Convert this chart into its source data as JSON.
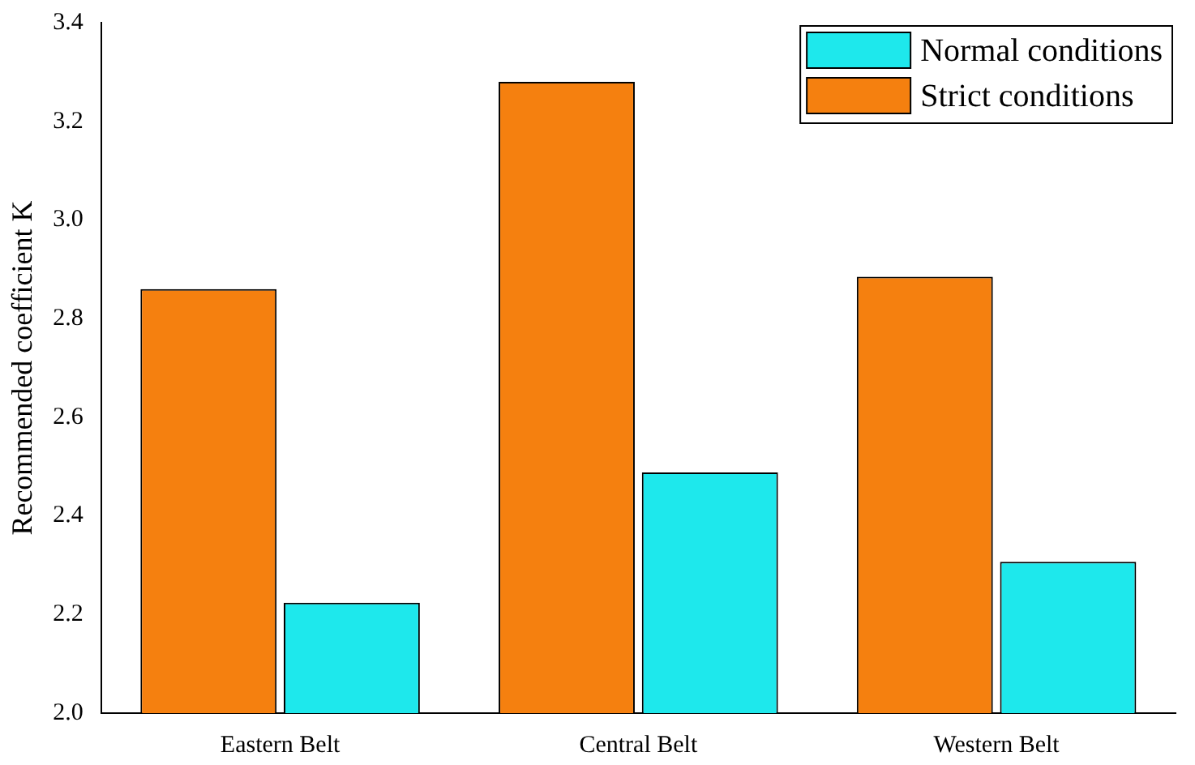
{
  "chart_data": {
    "type": "bar",
    "ylabel": "Recommended coefficient K",
    "categories": [
      "Eastern Belt",
      "Central Belt",
      "Western Belt"
    ],
    "series": [
      {
        "name": "Strict conditions",
        "color": "#f5800f",
        "values": [
          2.86,
          3.28,
          2.885
        ]
      },
      {
        "name": "Normal conditions",
        "color": "#1ee8ec",
        "values": [
          2.224,
          2.488,
          2.307
        ]
      }
    ],
    "ylim": [
      2.0,
      3.4
    ],
    "yticks": [
      {
        "value": 2.0,
        "label": "2.0"
      },
      {
        "value": 2.2,
        "label": "2.2"
      },
      {
        "value": 2.4,
        "label": "2.4"
      },
      {
        "value": 2.6,
        "label": "2.6"
      },
      {
        "value": 2.8,
        "label": "2.8"
      },
      {
        "value": 3.0,
        "label": "3.0"
      },
      {
        "value": 3.2,
        "label": "3.2"
      },
      {
        "value": 3.4,
        "label": "3.4"
      }
    ],
    "grid": false,
    "legend": "top right"
  }
}
